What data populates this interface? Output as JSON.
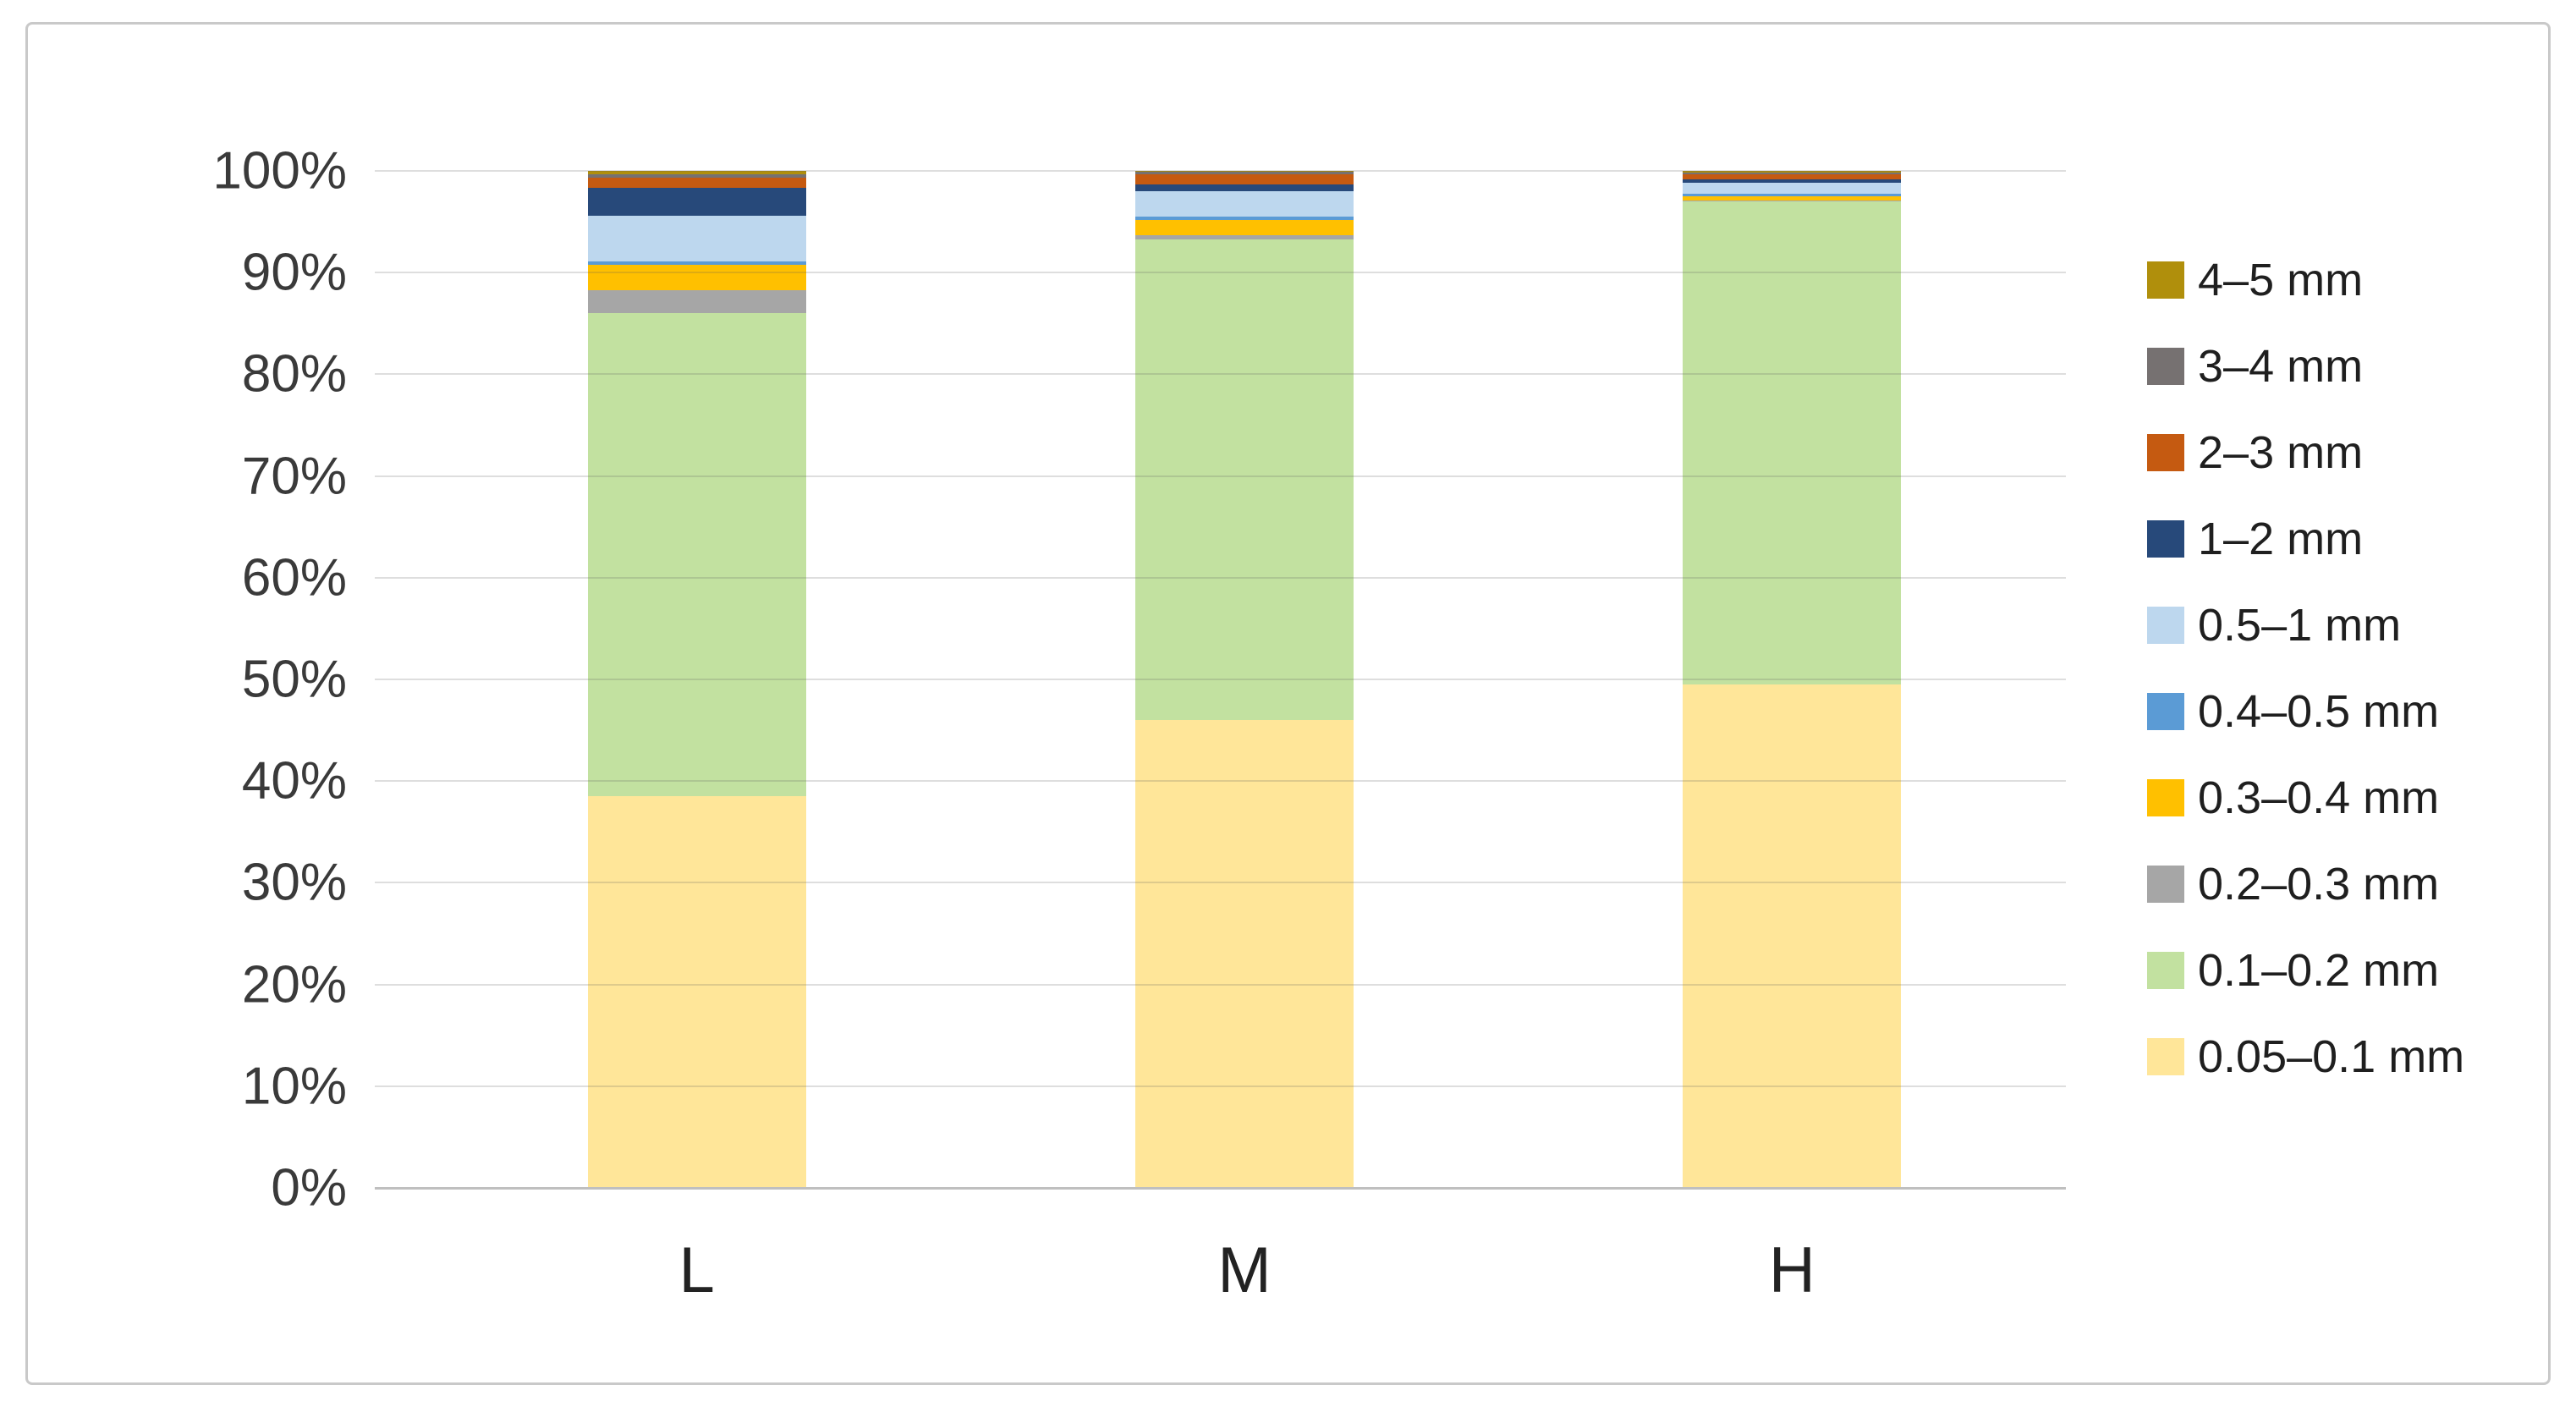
{
  "figure": {
    "background": "#FFFFFF",
    "border_color": "#C9C9C9"
  },
  "chart_data": {
    "type": "bar",
    "subtype": "stacked-100-percent",
    "title": "",
    "xlabel": "",
    "ylabel": "",
    "categories": [
      "L",
      "M",
      "H"
    ],
    "series": [
      {
        "name": "0.05–0.1 mm",
        "color": "#FFE699",
        "values": [
          38.5,
          46.0,
          49.5
        ]
      },
      {
        "name": "0.1–0.2 mm",
        "color": "#C2E1A0",
        "values": [
          47.5,
          47.3,
          47.5
        ]
      },
      {
        "name": "0.2–0.3 mm",
        "color": "#A6A6A6",
        "values": [
          2.3,
          0.4,
          0.1
        ]
      },
      {
        "name": "0.3–0.4 mm",
        "color": "#FFC000",
        "values": [
          2.5,
          1.5,
          0.4
        ]
      },
      {
        "name": "0.4–0.5 mm",
        "color": "#5B9BD5",
        "values": [
          0.3,
          0.3,
          0.3
        ]
      },
      {
        "name": "0.5–1 mm",
        "color": "#BDD7EE",
        "values": [
          4.5,
          2.5,
          1.0
        ]
      },
      {
        "name": "1–2 mm",
        "color": "#27497A",
        "values": [
          2.7,
          0.7,
          0.4
        ]
      },
      {
        "name": "2–3 mm",
        "color": "#C55A11",
        "values": [
          1.0,
          1.0,
          0.45
        ]
      },
      {
        "name": "3–4 mm",
        "color": "#767171",
        "values": [
          0.35,
          0.2,
          0.2
        ]
      },
      {
        "name": "4–5 mm",
        "color": "#B08F0C",
        "values": [
          0.35,
          0.1,
          0.15
        ]
      }
    ],
    "y_ticks": [
      {
        "label": "0%",
        "value": 0
      },
      {
        "label": "10%",
        "value": 10
      },
      {
        "label": "20%",
        "value": 20
      },
      {
        "label": "30%",
        "value": 30
      },
      {
        "label": "40%",
        "value": 40
      },
      {
        "label": "50%",
        "value": 50
      },
      {
        "label": "60%",
        "value": 60
      },
      {
        "label": "70%",
        "value": 70
      },
      {
        "label": "80%",
        "value": 80
      },
      {
        "label": "90%",
        "value": 90
      },
      {
        "label": "100%",
        "value": 100
      }
    ],
    "ylim": [
      0,
      100
    ],
    "grid": true,
    "gridline_color": "#D9D9D9",
    "axis_line_color": "#BFBFBF",
    "legend_position": "right",
    "legend_order_top_to_bottom": [
      "4–5 mm",
      "3–4 mm",
      "2–3 mm",
      "1–2 mm",
      "0.5–1 mm",
      "0.4–0.5 mm",
      "0.3–0.4 mm",
      "0.2–0.3 mm",
      "0.1–0.2 mm",
      "0.05–0.1 mm"
    ]
  }
}
